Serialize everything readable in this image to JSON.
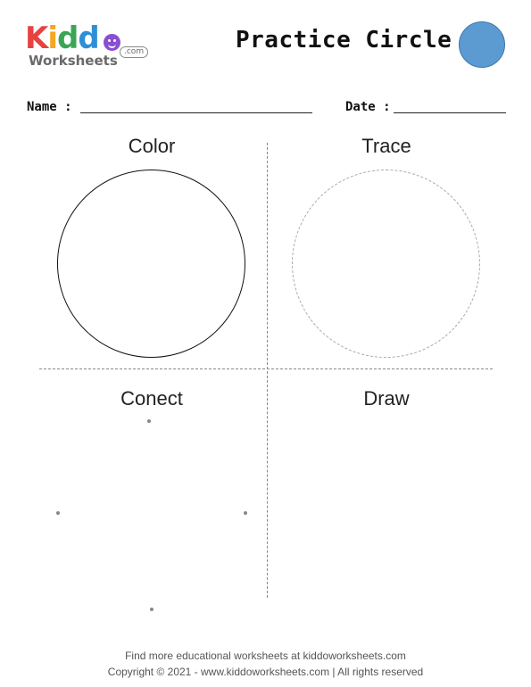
{
  "logo": {
    "letters": [
      {
        "char": "K",
        "color": "#e8423f"
      },
      {
        "char": "i",
        "color": "#f6a623"
      },
      {
        "char": "d",
        "color": "#3aa655"
      },
      {
        "char": "d",
        "color": "#2f8fd6"
      },
      {
        "char": "o",
        "color": "#8a4fd0"
      }
    ],
    "sub": "Worksheets",
    "com": ".com"
  },
  "header": {
    "title": "Practice Circle",
    "title_circle_color": "#5b9bd1"
  },
  "fields": {
    "name_label": "Name :",
    "date_label": "Date :"
  },
  "sections": {
    "color": "Color",
    "trace": "Trace",
    "connect": "Conect",
    "draw": "Draw"
  },
  "footer": {
    "line1": "Find more educational worksheets at kiddoworksheets.com",
    "line2": "Copyright © 2021 - www.kiddoworksheets.com  |  All rights reserved"
  }
}
